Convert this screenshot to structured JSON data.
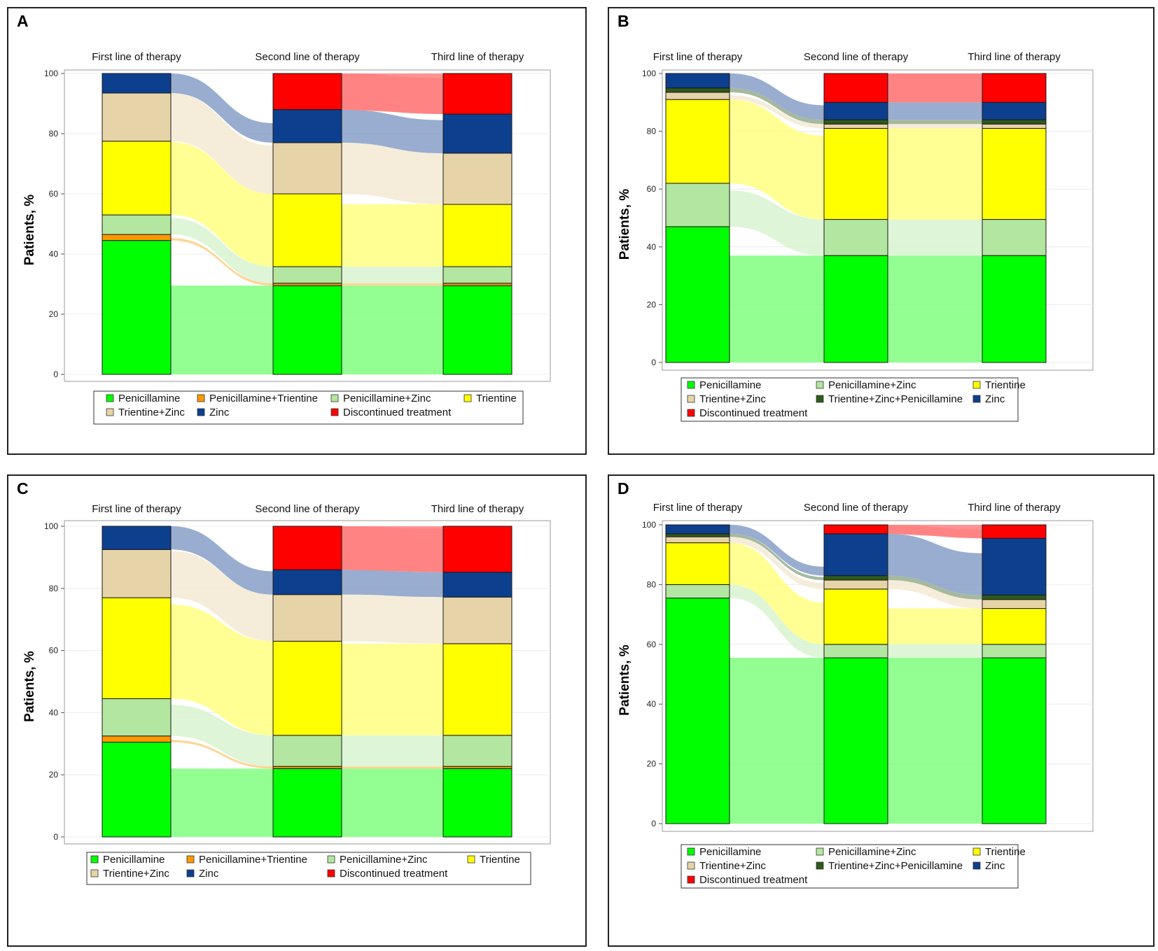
{
  "colors": {
    "Penicillamine": "#00ff00",
    "Penicillamine+Trientine": "#ff9900",
    "Penicillamine+Zinc": "#b3e6a0",
    "Trientine": "#ffff00",
    "Trientine+Zinc": "#e6d4a8",
    "Trientine+Zinc+Penicillamine": "#2e5a1c",
    "Zinc": "#0d3f8f",
    "Discontinued treatment": "#ff0000"
  },
  "chart_data": [
    {
      "panel": "A",
      "type": "sankey",
      "ylabel": "Patients, %",
      "ylim": [
        0,
        100
      ],
      "yticks": [
        "0",
        "20",
        "40",
        "60",
        "80",
        "100"
      ],
      "columns": [
        "First line of therapy",
        "Second line of therapy",
        "Third line of therapy"
      ],
      "legend": [
        [
          "Penicillamine",
          "Penicillamine+Trientine",
          "Penicillamine+Zinc",
          "Trientine"
        ],
        [
          "Trientine+Zinc",
          "Zinc",
          "Discontinued treatment"
        ]
      ],
      "stacks": [
        [
          [
            "Penicillamine",
            44.5
          ],
          [
            "Penicillamine+Trientine",
            2
          ],
          [
            "Penicillamine+Zinc",
            6.5
          ],
          [
            "Trientine",
            24.5
          ],
          [
            "Trientine+Zinc",
            16
          ],
          [
            "Zinc",
            6.5
          ]
        ],
        [
          [
            "Penicillamine",
            29.5
          ],
          [
            "Penicillamine+Trientine",
            0.8
          ],
          [
            "Penicillamine+Zinc",
            5.5
          ],
          [
            "Trientine",
            24.2
          ],
          [
            "Trientine+Zinc",
            17
          ],
          [
            "Zinc",
            11
          ],
          [
            "Discontinued treatment",
            12
          ]
        ],
        [
          [
            "Penicillamine",
            29.5
          ],
          [
            "Penicillamine+Trientine",
            0.8
          ],
          [
            "Penicillamine+Zinc",
            5.5
          ],
          [
            "Trientine",
            20.7
          ],
          [
            "Trientine+Zinc",
            17
          ],
          [
            "Zinc",
            13
          ],
          [
            "Discontinued treatment",
            13.5
          ]
        ]
      ]
    },
    {
      "panel": "B",
      "type": "sankey",
      "ylabel": "Patients, %",
      "ylim": [
        0,
        100
      ],
      "yticks": [
        "0",
        "20",
        "40",
        "60",
        "80",
        "100"
      ],
      "columns": [
        "First line of therapy",
        "Second line of therapy",
        "Third line of therapy"
      ],
      "legend": [
        [
          "Penicillamine",
          "Penicillamine+Zinc",
          "Trientine"
        ],
        [
          "Trientine+Zinc",
          "Trientine+Zinc+Penicillamine",
          "Zinc"
        ],
        [
          "Discontinued treatment"
        ]
      ],
      "stacks": [
        [
          [
            "Penicillamine",
            47
          ],
          [
            "Penicillamine+Zinc",
            15
          ],
          [
            "Trientine",
            29
          ],
          [
            "Trientine+Zinc",
            2.5
          ],
          [
            "Trientine+Zinc+Penicillamine",
            1.5
          ],
          [
            "Zinc",
            5
          ]
        ],
        [
          [
            "Penicillamine",
            37
          ],
          [
            "Penicillamine+Zinc",
            12.5
          ],
          [
            "Trientine",
            31.5
          ],
          [
            "Trientine+Zinc",
            1.5
          ],
          [
            "Trientine+Zinc+Penicillamine",
            1.5
          ],
          [
            "Zinc",
            6
          ],
          [
            "Discontinued treatment",
            10
          ]
        ],
        [
          [
            "Penicillamine",
            37
          ],
          [
            "Penicillamine+Zinc",
            12.5
          ],
          [
            "Trientine",
            31.5
          ],
          [
            "Trientine+Zinc",
            1.5
          ],
          [
            "Trientine+Zinc+Penicillamine",
            1.5
          ],
          [
            "Zinc",
            6
          ],
          [
            "Discontinued treatment",
            10
          ]
        ]
      ]
    },
    {
      "panel": "C",
      "type": "sankey",
      "ylabel": "Patients, %",
      "ylim": [
        0,
        100
      ],
      "yticks": [
        "0",
        "20",
        "40",
        "60",
        "80",
        "100"
      ],
      "columns": [
        "First line of therapy",
        "Second line of therapy",
        "Third line of therapy"
      ],
      "legend": [
        [
          "Penicillamine",
          "Penicillamine+Trientine",
          "Penicillamine+Zinc",
          "Trientine"
        ],
        [
          "Trientine+Zinc",
          "Zinc",
          "Discontinued treatment"
        ]
      ],
      "stacks": [
        [
          [
            "Penicillamine",
            30.5
          ],
          [
            "Penicillamine+Trientine",
            2
          ],
          [
            "Penicillamine+Zinc",
            12
          ],
          [
            "Trientine",
            32.5
          ],
          [
            "Trientine+Zinc",
            15.5
          ],
          [
            "Zinc",
            7.5
          ]
        ],
        [
          [
            "Penicillamine",
            22
          ],
          [
            "Penicillamine+Trientine",
            0.7
          ],
          [
            "Penicillamine+Zinc",
            10
          ],
          [
            "Trientine",
            30.3
          ],
          [
            "Trientine+Zinc",
            15
          ],
          [
            "Zinc",
            8
          ],
          [
            "Discontinued treatment",
            14
          ]
        ],
        [
          [
            "Penicillamine",
            22
          ],
          [
            "Penicillamine+Trientine",
            0.7
          ],
          [
            "Penicillamine+Zinc",
            10
          ],
          [
            "Trientine",
            29.5
          ],
          [
            "Trientine+Zinc",
            15
          ],
          [
            "Zinc",
            8
          ],
          [
            "Discontinued treatment",
            14.8
          ]
        ]
      ]
    },
    {
      "panel": "D",
      "type": "sankey",
      "ylabel": "Patients, %",
      "ylim": [
        0,
        100
      ],
      "yticks": [
        "0",
        "20",
        "40",
        "60",
        "80",
        "100"
      ],
      "columns": [
        "First line of therapy",
        "Second line of therapy",
        "Third line of therapy"
      ],
      "legend": [
        [
          "Penicillamine",
          "Penicillamine+Zinc",
          "Trientine"
        ],
        [
          "Trientine+Zinc",
          "Trientine+Zinc+Penicillamine",
          "Zinc"
        ],
        [
          "Discontinued treatment"
        ]
      ],
      "stacks": [
        [
          [
            "Penicillamine",
            75.5
          ],
          [
            "Penicillamine+Zinc",
            4.5
          ],
          [
            "Trientine",
            14
          ],
          [
            "Trientine+Zinc",
            2
          ],
          [
            "Trientine+Zinc+Penicillamine",
            1
          ],
          [
            "Zinc",
            3
          ]
        ],
        [
          [
            "Penicillamine",
            55.5
          ],
          [
            "Penicillamine+Zinc",
            4.5
          ],
          [
            "Trientine",
            18.5
          ],
          [
            "Trientine+Zinc",
            3
          ],
          [
            "Trientine+Zinc+Penicillamine",
            1.5
          ],
          [
            "Zinc",
            14
          ],
          [
            "Discontinued treatment",
            3
          ]
        ],
        [
          [
            "Penicillamine",
            55.5
          ],
          [
            "Penicillamine+Zinc",
            4.5
          ],
          [
            "Trientine",
            12
          ],
          [
            "Trientine+Zinc",
            3
          ],
          [
            "Trientine+Zinc+Penicillamine",
            1.5
          ],
          [
            "Zinc",
            19
          ],
          [
            "Discontinued treatment",
            4.5
          ]
        ]
      ]
    }
  ]
}
